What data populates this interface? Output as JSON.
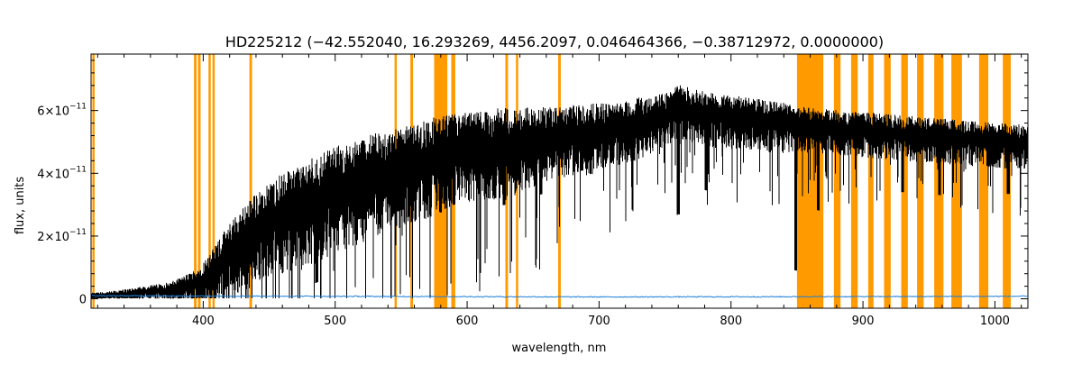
{
  "chart_data": {
    "type": "line",
    "title": "HD225212   (−42.552040, 16.293269, 4456.2097, 0.046464366, −0.38712972, 0.0000000)",
    "xlabel": "wavelength, nm",
    "ylabel": "flux, units",
    "xlim": [
      315,
      1025
    ],
    "ylim": [
      -0.3,
      7.8
    ],
    "y_unit_exponent": -11,
    "x_ticks": [
      400,
      500,
      600,
      700,
      800,
      900,
      1000
    ],
    "x_tick_labels": [
      "400",
      "500",
      "600",
      "700",
      "800",
      "900",
      "1000"
    ],
    "y_ticks": [
      0,
      2,
      4,
      6
    ],
    "y_tick_labels": [
      {
        "mantissa": "0",
        "exp": ""
      },
      {
        "mantissa": "2×10",
        "exp": "−11"
      },
      {
        "mantissa": "4×10",
        "exp": "−11"
      },
      {
        "mantissa": "6×10",
        "exp": "−11"
      }
    ],
    "grid": false,
    "series": [
      {
        "color": "#000000",
        "x": [
          315,
          330,
          345,
          360,
          375,
          385,
          395,
          405,
          415,
          425,
          435,
          445,
          455,
          465,
          475,
          485,
          500,
          515,
          530,
          545,
          560,
          575,
          590,
          610,
          630,
          650,
          670,
          690,
          710,
          730,
          750,
          760,
          775,
          790,
          810,
          830,
          850,
          870,
          900,
          930,
          960,
          990,
          1025
        ],
        "y": [
          0.1,
          0.15,
          0.2,
          0.3,
          0.35,
          0.45,
          0.6,
          0.9,
          1.4,
          1.9,
          2.3,
          2.6,
          2.9,
          3.1,
          3.3,
          3.5,
          3.8,
          4.0,
          4.2,
          4.4,
          4.6,
          4.8,
          5.0,
          5.1,
          5.2,
          5.3,
          5.4,
          5.5,
          5.6,
          5.8,
          6.0,
          6.3,
          6.1,
          6.0,
          5.9,
          5.8,
          5.7,
          5.6,
          5.5,
          5.4,
          5.3,
          5.2,
          5.1
        ],
        "noise_amplitude": [
          0.1,
          0.1,
          0.15,
          0.15,
          0.2,
          0.3,
          0.4,
          0.6,
          0.8,
          0.9,
          1.0,
          1.0,
          1.1,
          1.1,
          1.2,
          1.2,
          1.2,
          1.2,
          1.2,
          1.1,
          1.1,
          1.1,
          1.0,
          1.0,
          1.0,
          0.9,
          0.8,
          0.8,
          0.7,
          0.7,
          0.6,
          0.6,
          0.6,
          0.6,
          0.6,
          0.6,
          0.5,
          0.5,
          0.5,
          0.5,
          0.5,
          0.5,
          0.5
        ]
      },
      {
        "color": "#1e7fd8",
        "x": [
          315,
          500,
          700,
          900,
          1025
        ],
        "y": [
          0.1,
          0.08,
          0.06,
          0.07,
          0.08
        ]
      }
    ],
    "absorption_lines": [
      {
        "x": 486,
        "depth": 3.0
      },
      {
        "x": 518,
        "depth": 1.5
      },
      {
        "x": 527,
        "depth": 1.5
      },
      {
        "x": 590,
        "depth": 2.0
      },
      {
        "x": 628,
        "depth": 2.2
      },
      {
        "x": 656,
        "depth": 2.0
      },
      {
        "x": 687,
        "depth": 1.4
      },
      {
        "x": 760,
        "depth": 3.6
      },
      {
        "x": 781,
        "depth": 2.6
      },
      {
        "x": 849,
        "depth": 4.8
      },
      {
        "x": 866,
        "depth": 2.8
      },
      {
        "x": 930,
        "depth": 2.0
      },
      {
        "x": 958,
        "depth": 2.0
      },
      {
        "x": 1010,
        "depth": 1.8
      }
    ],
    "masked_regions": {
      "color": "#ff9a00",
      "ranges": [
        [
          316,
          317
        ],
        [
          393,
          395
        ],
        [
          396,
          398
        ],
        [
          404,
          405
        ],
        [
          407,
          408
        ],
        [
          435,
          437
        ],
        [
          545,
          546
        ],
        [
          557,
          559
        ],
        [
          575,
          585
        ],
        [
          588,
          591
        ],
        [
          629,
          631
        ],
        [
          637,
          638
        ],
        [
          669,
          671
        ],
        [
          850,
          870
        ],
        [
          878,
          883
        ],
        [
          891,
          896
        ],
        [
          904,
          908
        ],
        [
          916,
          921
        ],
        [
          929,
          934
        ],
        [
          941,
          946
        ],
        [
          954,
          961
        ],
        [
          967,
          975
        ],
        [
          988,
          995
        ],
        [
          1006,
          1012
        ]
      ]
    }
  }
}
